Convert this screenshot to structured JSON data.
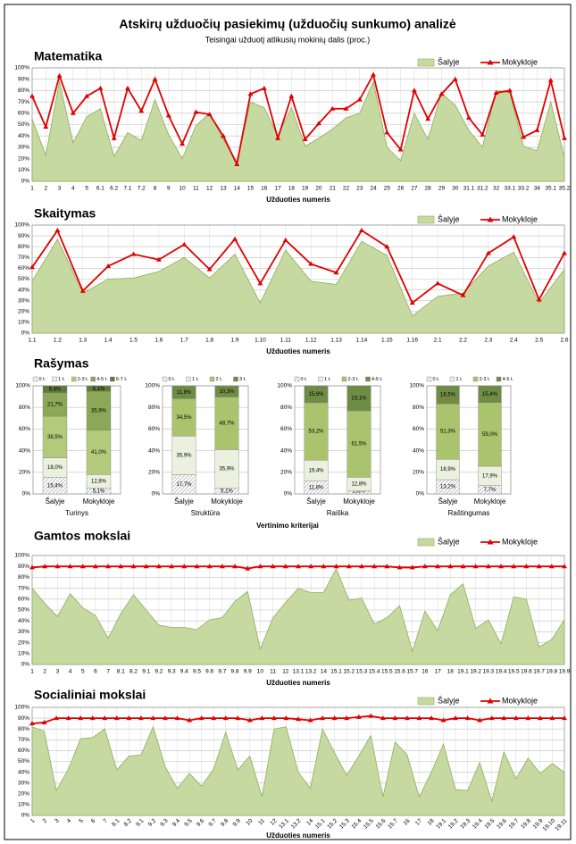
{
  "title": "Atskirų užduočių pasiekimų (užduočių sunkumo) analizė",
  "subtitle": "Teisingai užduotį atlikusių mokinių dalis (proc.)",
  "chart_data": [
    {
      "type": "line",
      "title": "Matematika",
      "xlabel": "Užduoties numeris",
      "grid": true,
      "xgrid": true,
      "categories": [
        "1",
        "2",
        "3",
        "4",
        "5",
        "6.1",
        "6.2",
        "7.1",
        "7.2",
        "8",
        "9",
        "10",
        "11",
        "12",
        "13",
        "14",
        "15",
        "16",
        "17",
        "18",
        "19",
        "20",
        "21",
        "22",
        "23",
        "24",
        "25",
        "26",
        "27",
        "28",
        "29",
        "30",
        "31.1",
        "31.2",
        "32",
        "33.1",
        "33.2",
        "34",
        "35.1",
        "35.2"
      ],
      "series": [
        {
          "name": "Šalyje",
          "style": "area",
          "color": "#c6d9a0",
          "values": [
            55,
            23,
            88,
            34,
            57,
            64,
            22,
            43,
            36,
            72,
            41,
            20,
            49,
            60,
            37,
            17,
            70,
            65,
            40,
            65,
            31,
            38,
            46,
            56,
            60,
            88,
            30,
            18,
            60,
            37,
            78,
            67,
            45,
            30,
            80,
            78,
            31,
            27,
            70,
            21
          ]
        },
        {
          "name": "Mokykloje",
          "style": "line",
          "color": "#e00000",
          "values": [
            75,
            48,
            93,
            60,
            75,
            82,
            38,
            82,
            62,
            90,
            58,
            33,
            61,
            59,
            40,
            15,
            77,
            82,
            38,
            75,
            37,
            51,
            64,
            64,
            72,
            94,
            43,
            28,
            80,
            55,
            77,
            90,
            56,
            41,
            78,
            80,
            39,
            45,
            89,
            38
          ]
        }
      ],
      "ylim": [
        0,
        100
      ],
      "yticks": [
        {
          "value": 0,
          "label": "0%"
        },
        {
          "value": 10,
          "label": "10%"
        },
        {
          "value": 20,
          "label": "20%"
        },
        {
          "value": 30,
          "label": "30%"
        },
        {
          "value": 40,
          "label": "40%"
        },
        {
          "value": 50,
          "label": "50%"
        },
        {
          "value": 60,
          "label": "60%"
        },
        {
          "value": 70,
          "label": "70%"
        },
        {
          "value": 80,
          "label": "80%"
        },
        {
          "value": 90,
          "label": "90%"
        },
        {
          "value": 100,
          "label": "100%"
        }
      ]
    },
    {
      "type": "line",
      "title": "Skaitymas",
      "xlabel": "Užduoties numeris",
      "grid": true,
      "xgrid": true,
      "categories": [
        "1.1",
        "1.2",
        "1.3",
        "1.4",
        "1.5",
        "1.6",
        "1.7",
        "1.8",
        "1.9",
        "1.10",
        "1.11",
        "1.12",
        "1.13",
        "1.14",
        "1.15",
        "1.16",
        "2.1",
        "2.2",
        "2.3",
        "2.4",
        "2.5",
        "2.6"
      ],
      "series": [
        {
          "name": "Šalyje",
          "style": "area",
          "color": "#c6d9a0",
          "values": [
            48,
            87,
            37,
            50,
            51,
            57,
            70,
            51,
            73,
            28,
            77,
            48,
            45,
            85,
            72,
            16,
            34,
            37,
            62,
            75,
            28,
            59
          ]
        },
        {
          "name": "Mokykloje",
          "style": "line",
          "color": "#e00000",
          "values": [
            61,
            95,
            39,
            62,
            73,
            68,
            82,
            59,
            87,
            46,
            86,
            64,
            56,
            95,
            80,
            28,
            46,
            35,
            74,
            89,
            31,
            74
          ]
        }
      ],
      "ylim": [
        0,
        100
      ],
      "yticks": [
        {
          "value": 0,
          "label": "0%"
        },
        {
          "value": 10,
          "label": "10%"
        },
        {
          "value": 20,
          "label": "20%"
        },
        {
          "value": 30,
          "label": "30%"
        },
        {
          "value": 40,
          "label": "40%"
        },
        {
          "value": 50,
          "label": "50%"
        },
        {
          "value": 60,
          "label": "60%"
        },
        {
          "value": 70,
          "label": "70%"
        },
        {
          "value": 80,
          "label": "80%"
        },
        {
          "value": 90,
          "label": "90%"
        },
        {
          "value": 100,
          "label": "100%"
        }
      ]
    },
    {
      "type": "bar",
      "stacked": true,
      "title": "Rašymas",
      "xlabel": "Vertinimo kriterijai",
      "grid": true,
      "ylim": [
        0,
        100
      ],
      "yticks": [
        {
          "value": 0,
          "label": "0%"
        },
        {
          "value": 20,
          "label": "20%"
        },
        {
          "value": 40,
          "label": "40%"
        },
        {
          "value": 60,
          "label": "60%"
        },
        {
          "value": 80,
          "label": "80%"
        },
        {
          "value": 100,
          "label": "100%"
        }
      ],
      "panels": [
        {
          "title": "Turinys",
          "categories": [
            "Šalyje",
            "Mokykloje"
          ],
          "series": [
            {
              "name": "0 t.",
              "color": "#ffffff",
              "pattern": "hatch",
              "values": [
                15.4,
                5.1
              ],
              "value_labels": [
                "15,4%",
                "5,1%"
              ]
            },
            {
              "name": "1 t.",
              "color": "#ebf1de",
              "values": [
                18.0,
                12.8
              ],
              "value_labels": [
                "18,0%",
                "12,8%"
              ]
            },
            {
              "name": "2-3 t.",
              "color": "#b3ca7a",
              "values": [
                38.5,
                41.0
              ],
              "value_labels": [
                "38,5%",
                "41,0%"
              ]
            },
            {
              "name": "4-5 t.",
              "color": "#8aa857",
              "values": [
                21.7,
                35.9
              ],
              "value_labels": [
                "21,7%",
                "35,9%"
              ]
            },
            {
              "name": "6-7 t.",
              "color": "#5e7a35",
              "values": [
                6.4,
                5.1
              ],
              "value_labels": [
                "6,4%",
                "5,1%"
              ]
            }
          ]
        },
        {
          "title": "Struktūra",
          "categories": [
            "Šalyje",
            "Mokykloje"
          ],
          "series": [
            {
              "name": "0 t.",
              "color": "#ffffff",
              "pattern": "hatch",
              "values": [
                17.7,
                5.1
              ],
              "value_labels": [
                "17,7%",
                "5,1%"
              ]
            },
            {
              "name": "1 t.",
              "color": "#ebf1de",
              "values": [
                35.9,
                35.9
              ],
              "value_labels": [
                "35,9%",
                "35,9%"
              ]
            },
            {
              "name": "2 t.",
              "color": "#a9c46c",
              "values": [
                34.5,
                48.7
              ],
              "value_labels": [
                "34,5%",
                "48,7%"
              ]
            },
            {
              "name": "3 t.",
              "color": "#6f8c44",
              "values": [
                11.8,
                10.3
              ],
              "value_labels": [
                "11,8%",
                "10,3%"
              ]
            }
          ]
        },
        {
          "title": "Raiška",
          "categories": [
            "Šalyje",
            "Mokykloje"
          ],
          "series": [
            {
              "name": "0 t.",
              "color": "#ffffff",
              "pattern": "hatch",
              "values": [
                11.8,
                2.6
              ],
              "value_labels": [
                "11,8%",
                "2,6%"
              ]
            },
            {
              "name": "1 t.",
              "color": "#ebf1de",
              "values": [
                19.4,
                12.8
              ],
              "value_labels": [
                "19,4%",
                "12,8%"
              ]
            },
            {
              "name": "2-3 t.",
              "color": "#a9c46c",
              "values": [
                53.2,
                61.5
              ],
              "value_labels": [
                "53,2%",
                "61,5%"
              ]
            },
            {
              "name": "4-5 t.",
              "color": "#6f8c44",
              "values": [
                15.6,
                23.1
              ],
              "value_labels": [
                "15,6%",
                "23,1%"
              ]
            }
          ]
        },
        {
          "title": "Raštingumas",
          "categories": [
            "Šalyje",
            "Mokykloje"
          ],
          "series": [
            {
              "name": "0 t.",
              "color": "#ffffff",
              "pattern": "hatch",
              "values": [
                13.2,
                7.7
              ],
              "value_labels": [
                "13,2%",
                "7,7%"
              ]
            },
            {
              "name": "1 t.",
              "color": "#ebf1de",
              "values": [
                18.9,
                17.9
              ],
              "value_labels": [
                "18,9%",
                "17,9%"
              ]
            },
            {
              "name": "2-3 t.",
              "color": "#a9c46c",
              "values": [
                51.3,
                59.0
              ],
              "value_labels": [
                "51,3%",
                "59,0%"
              ]
            },
            {
              "name": "4-5 t.",
              "color": "#6f8c44",
              "values": [
                16.5,
                15.4
              ],
              "value_labels": [
                "16,5%",
                "15,4%"
              ]
            }
          ]
        }
      ]
    },
    {
      "type": "line",
      "title": "Gamtos mokslai",
      "xlabel": "Užduoties numeris",
      "grid": true,
      "xgrid": true,
      "categories": [
        "1",
        "2",
        "3",
        "4",
        "5",
        "6",
        "7",
        "8.1",
        "8.2",
        "9.1",
        "9.2",
        "9.3",
        "9.4",
        "9.5",
        "9.6",
        "9.7",
        "9.8",
        "9.9",
        "10",
        "11",
        "12",
        "13.1",
        "13.2",
        "14",
        "15.1",
        "15.2",
        "15.3",
        "15.4",
        "15.5",
        "15.6",
        "15.7",
        "16",
        "17",
        "18",
        "19.1",
        "19.2",
        "19.3",
        "19.4",
        "19.5",
        "19.6",
        "19.7",
        "19.8",
        "19.9"
      ],
      "series": [
        {
          "name": "Šalyje",
          "style": "area",
          "color": "#c6d9a0",
          "values": [
            70,
            56,
            44,
            65,
            52,
            45,
            24,
            47,
            64,
            50,
            36,
            34,
            34,
            32,
            41,
            43,
            58,
            67,
            14,
            43,
            57,
            70,
            66,
            66,
            88,
            59,
            61,
            37,
            43,
            54,
            12,
            49,
            31,
            64,
            74,
            33,
            41,
            19,
            62,
            60,
            16,
            23,
            41
          ]
        },
        {
          "name": "Mokykloje",
          "style": "line",
          "color": "#e00000",
          "values": [
            89,
            90,
            90,
            90,
            90,
            90,
            90,
            90,
            90,
            90,
            90,
            90,
            90,
            90,
            90,
            90,
            90,
            88,
            90,
            90,
            90,
            90,
            90,
            90,
            90,
            90,
            90,
            90,
            90,
            89,
            89,
            90,
            90,
            90,
            90,
            90,
            90,
            90,
            90,
            90,
            90,
            90,
            90
          ]
        }
      ],
      "ylim": [
        0,
        100
      ],
      "yticks": [
        {
          "value": 0,
          "label": "0%"
        },
        {
          "value": 10,
          "label": "10%"
        },
        {
          "value": 20,
          "label": "20%"
        },
        {
          "value": 30,
          "label": "30%"
        },
        {
          "value": 40,
          "label": "40%"
        },
        {
          "value": 50,
          "label": "50%"
        },
        {
          "value": 60,
          "label": "60%"
        },
        {
          "value": 70,
          "label": "70%"
        },
        {
          "value": 80,
          "label": "80%"
        },
        {
          "value": 90,
          "label": "90%"
        },
        {
          "value": 100,
          "label": "100%"
        }
      ]
    },
    {
      "type": "line",
      "title": "Socialiniai mokslai",
      "xlabel": "Užduoties numeris",
      "grid": true,
      "xgrid": true,
      "xtick_rotation": -45,
      "categories": [
        "1",
        "2",
        "3",
        "4",
        "5",
        "6",
        "7",
        "8.1",
        "8.2",
        "9.1",
        "9.2",
        "9.3",
        "9.4",
        "9.5",
        "9.6",
        "9.7",
        "9.8",
        "9.9",
        "10",
        "11",
        "12",
        "13.1",
        "13.2",
        "14",
        "15.1",
        "15.2",
        "15.3",
        "15.4",
        "15.5",
        "15.6",
        "15.7",
        "16",
        "17",
        "18",
        "19.1",
        "19.2",
        "19.3",
        "19.4",
        "19.5",
        "19.6",
        "19.7",
        "19.8",
        "19.9",
        "19.10",
        "19.11"
      ],
      "series": [
        {
          "name": "Šalyje",
          "style": "area",
          "color": "#c6d9a0",
          "values": [
            82,
            78,
            23,
            43,
            71,
            72,
            80,
            42,
            55,
            56,
            82,
            45,
            25,
            39,
            27,
            43,
            77,
            42,
            55,
            17,
            80,
            82,
            40,
            25,
            80,
            58,
            37,
            55,
            74,
            17,
            68,
            56,
            17,
            40,
            66,
            24,
            23,
            49,
            13,
            59,
            34,
            53,
            39,
            48,
            40
          ]
        },
        {
          "name": "Mokykloje",
          "style": "line",
          "color": "#e00000",
          "values": [
            85,
            86,
            90,
            90,
            90,
            90,
            90,
            90,
            90,
            90,
            90,
            90,
            90,
            88,
            90,
            90,
            90,
            90,
            88,
            90,
            90,
            90,
            89,
            88,
            90,
            90,
            90,
            91,
            92,
            90,
            90,
            90,
            90,
            90,
            88,
            90,
            90,
            88,
            90,
            90,
            90,
            90,
            90,
            90,
            90
          ]
        }
      ],
      "ylim": [
        0,
        100
      ],
      "yticks": [
        {
          "value": 0,
          "label": "0%"
        },
        {
          "value": 10,
          "label": "10%"
        },
        {
          "value": 20,
          "label": "20%"
        },
        {
          "value": 30,
          "label": "30%"
        },
        {
          "value": 40,
          "label": "40%"
        },
        {
          "value": 50,
          "label": "50%"
        },
        {
          "value": 60,
          "label": "60%"
        },
        {
          "value": 70,
          "label": "70%"
        },
        {
          "value": 80,
          "label": "80%"
        },
        {
          "value": 90,
          "label": "90%"
        },
        {
          "value": 100,
          "label": "100%"
        }
      ]
    }
  ]
}
